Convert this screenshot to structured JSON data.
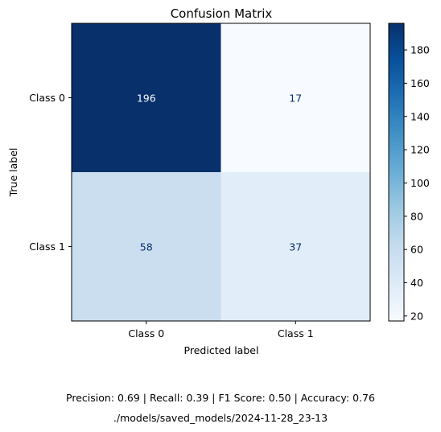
{
  "chart_data": {
    "type": "heatmap",
    "title": "Confusion Matrix",
    "xlabel": "Predicted label",
    "ylabel": "True label",
    "x_categories": [
      "Class 0",
      "Class 1"
    ],
    "y_categories": [
      "Class 0",
      "Class 1"
    ],
    "matrix": [
      [
        196,
        17
      ],
      [
        58,
        37
      ]
    ],
    "colormap": "Blues",
    "colormap_stops": [
      "#f7fbff",
      "#deebf7",
      "#c6dbef",
      "#9ecae1",
      "#6baed6",
      "#4292c6",
      "#2171b5",
      "#08519c",
      "#08306b"
    ],
    "colorbar": {
      "vmin": 17,
      "vmax": 196,
      "ticks": [
        "20",
        "40",
        "60",
        "80",
        "100",
        "120",
        "140",
        "160",
        "180"
      ]
    },
    "cell_text_dark": "#08306b",
    "cell_text_light": "#f7fbff"
  },
  "footer": {
    "metrics": "Precision: 0.69 | Recall: 0.39 | F1 Score: 0.50 | Accuracy: 0.76",
    "path": "./models/saved_models/2024-11-28_23-13"
  }
}
